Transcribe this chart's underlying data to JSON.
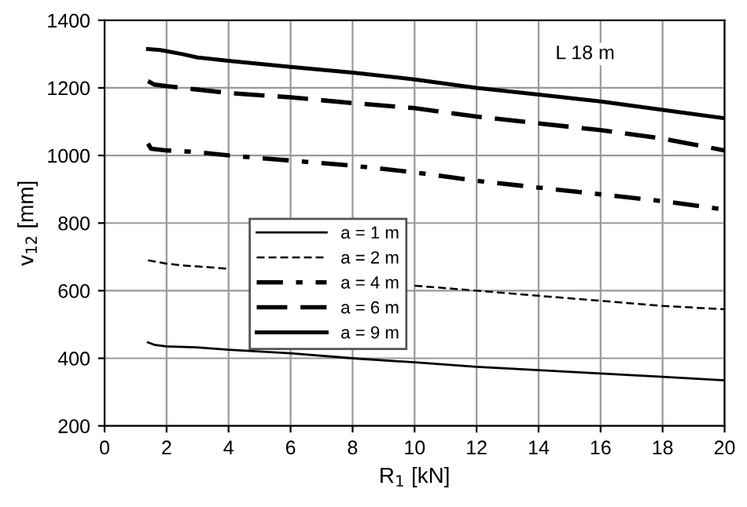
{
  "chart_data": {
    "type": "line",
    "xlabel": "R$_{1}$ [kN]",
    "ylabel": "v$_{12}$ [mm]",
    "xlim": [
      0,
      20
    ],
    "xticks": [
      0,
      2,
      4,
      6,
      8,
      10,
      12,
      14,
      16,
      18,
      20
    ],
    "ylim": [
      200,
      1400
    ],
    "yticks": [
      200,
      400,
      600,
      800,
      1000,
      1200,
      1400
    ],
    "grid": true,
    "legend": "left",
    "marker": "none",
    "annotations": [
      {
        "text": "L 18 m",
        "x": 15.5,
        "y": 1300
      }
    ],
    "series": [
      {
        "name": "a = 1 m",
        "color": "#000000",
        "line_style": "solid",
        "x": [
          1.4,
          1.6,
          2,
          3,
          4,
          6,
          8,
          10,
          12,
          14,
          16,
          18,
          20
        ],
        "values": [
          447,
          440,
          435,
          432,
          425,
          415,
          400,
          388,
          375,
          365,
          355,
          345,
          335
        ]
      },
      {
        "name": "a = 2 m",
        "color": "#000000",
        "line_style": "dashed",
        "x": [
          1.4,
          2,
          2.5,
          4,
          6,
          8,
          10,
          12,
          14,
          16,
          18,
          20
        ],
        "values": [
          690,
          680,
          675,
          665,
          null,
          null,
          615,
          600,
          585,
          570,
          555,
          545
        ]
      },
      {
        "name": "a = 4 m",
        "color": "#000000",
        "line_style": "dashdot",
        "x": [
          1.4,
          1.5,
          2,
          3,
          4,
          6,
          8,
          10,
          12,
          14,
          16,
          18,
          20
        ],
        "values": [
          1035,
          1020,
          1015,
          1010,
          1000,
          985,
          970,
          950,
          925,
          905,
          885,
          865,
          840
        ]
      },
      {
        "name": "a = 6 m",
        "color": "#000000",
        "line_style": "longdash",
        "x": [
          1.4,
          1.6,
          2,
          3,
          4,
          6,
          8,
          10,
          12,
          14,
          16,
          18,
          20
        ],
        "values": [
          1220,
          1210,
          1205,
          1195,
          1185,
          1172,
          1155,
          1140,
          1115,
          1095,
          1075,
          1050,
          1015
        ]
      },
      {
        "name": "a = 9 m",
        "color": "#000000",
        "line_style": "solid",
        "x": [
          1.4,
          1.8,
          2.5,
          3,
          4,
          6,
          8,
          10,
          12,
          14,
          16,
          18,
          20
        ],
        "values": [
          1315,
          1312,
          1300,
          1290,
          1280,
          1262,
          1245,
          1225,
          1200,
          1180,
          1160,
          1135,
          1110
        ]
      }
    ]
  }
}
